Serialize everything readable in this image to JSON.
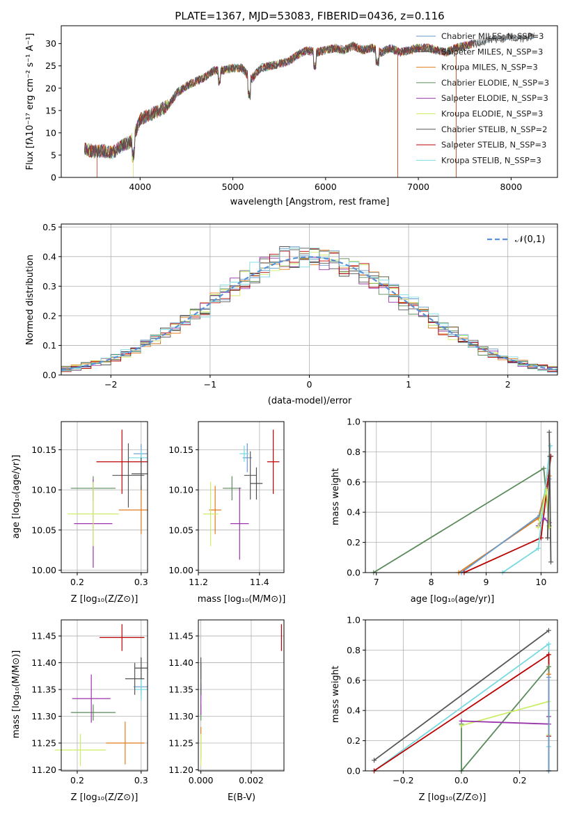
{
  "palette": [
    "#6699cc",
    "#4d4d4d",
    "#e07b1a",
    "#5a8a5a",
    "#9933aa",
    "#ccee66",
    "#555555",
    "#bb0000",
    "#77d9e0"
  ],
  "chart_data": [
    {
      "type": "line",
      "title": "PLATE=1367, MJD=53083, FIBERID=0436, z=0.116",
      "xlabel": "wavelength [Angstrom, rest frame]",
      "ylabel": "Flux [fλ10⁻¹⁷ erg cm⁻² s⁻¹ A⁻¹]",
      "xlim": [
        3150,
        8500
      ],
      "ylim": [
        0,
        34
      ],
      "xticks": [
        "4000",
        "5000",
        "6000",
        "7000",
        "8000"
      ],
      "yticks": [
        "0",
        "5",
        "10",
        "15",
        "20",
        "25",
        "30"
      ],
      "legend_position": "right",
      "series": [
        {
          "name": "Chabrier MILES, N_SSP=3"
        },
        {
          "name": "Salpeter MILES, N_SSP=3"
        },
        {
          "name": "Kroupa MILES, N_SSP=3"
        },
        {
          "name": "Chabrier ELODIE, N_SSP=3"
        },
        {
          "name": "Salpeter ELODIE, N_SSP=3"
        },
        {
          "name": "Kroupa ELODIE, N_SSP=3"
        },
        {
          "name": "Chabrier STELIB, N_SSP=2"
        },
        {
          "name": "Salpeter STELIB, N_SSP=3"
        },
        {
          "name": "Kroupa STELIB, N_SSP=3"
        }
      ],
      "spectrum": {
        "x": [
          3400,
          3500,
          3600,
          3700,
          3800,
          3900,
          3950,
          4000,
          4100,
          4200,
          4300,
          4400,
          4500,
          4600,
          4700,
          4800,
          4900,
          5000,
          5100,
          5200,
          5300,
          5400,
          5500,
          5600,
          5700,
          5800,
          5900,
          6000,
          6100,
          6200,
          6300,
          6400,
          6500,
          6600,
          6700,
          6800,
          6900,
          7000,
          7100,
          7200,
          7300,
          7400,
          7500,
          7600,
          7700,
          7800,
          7900,
          8000,
          8100,
          8200
        ],
        "y": [
          6.5,
          5.8,
          6,
          5.5,
          7,
          8,
          10,
          13,
          14,
          15,
          16,
          19,
          20.5,
          21.5,
          22.5,
          24,
          24,
          24.5,
          24.5,
          22,
          24.5,
          25,
          25.5,
          26,
          27.5,
          28.5,
          28,
          28.5,
          29,
          28.5,
          29.5,
          28.5,
          29,
          28,
          29,
          28,
          28.5,
          29,
          29,
          28.5,
          28,
          29,
          29.5,
          30,
          30.5,
          31,
          31,
          31.5,
          31,
          31.5
        ]
      }
    },
    {
      "type": "line",
      "xlabel": "(data-model)/error",
      "ylabel": "Normed distribution",
      "xlim": [
        -2.5,
        2.5
      ],
      "ylim": [
        0,
        0.51
      ],
      "xticks": [
        "−2",
        "−1",
        "0",
        "1",
        "2"
      ],
      "yticks": [
        "0.0",
        "0.1",
        "0.2",
        "0.3",
        "0.4",
        "0.5"
      ],
      "legend": "𝒩(0,1)",
      "legend_position": "upper right",
      "bin_width": 0.1
    },
    {
      "type": "scatter",
      "xlabel": "Z [log₁₀(Z/Z⊙)]",
      "ylabel": "age  [log₁₀(age/yr)]",
      "xlim": [
        0.175,
        0.31
      ],
      "ylim": [
        9.997,
        10.185
      ],
      "xticks": [
        {
          "v": 0.2,
          "t": "0.2"
        },
        {
          "v": 0.3,
          "t": "0.3"
        }
      ],
      "yticks": [
        {
          "v": 10.0,
          "t": "10.00"
        },
        {
          "v": 10.05,
          "t": "10.05"
        },
        {
          "v": 10.1,
          "t": "10.10"
        },
        {
          "v": 10.15,
          "t": "10.15"
        }
      ],
      "points": [
        {
          "x": 0.3,
          "y": 10.145,
          "xe": 0.012,
          "ye": 0.012,
          "c": 0
        },
        {
          "x": 0.3,
          "y": 10.14,
          "xe": 0.02,
          "ye": 0.01,
          "c": 8
        },
        {
          "x": 0.3,
          "y": 10.075,
          "xe": 0.035,
          "ye": 0.03,
          "c": 2
        },
        {
          "x": 0.225,
          "y": 10.102,
          "xe": 0.035,
          "ye": 0.015,
          "c": 3
        },
        {
          "x": 0.225,
          "y": 10.058,
          "xe": 0.03,
          "ye": 0.055,
          "c": 4
        },
        {
          "x": 0.225,
          "y": 10.07,
          "xe": 0.04,
          "ye": 0.04,
          "c": 5
        },
        {
          "x": 0.28,
          "y": 10.118,
          "xe": 0.025,
          "ye": 0.04,
          "c": 6
        },
        {
          "x": 0.27,
          "y": 10.135,
          "xe": 0.04,
          "ye": 0.04,
          "c": 7
        },
        {
          "x": 0.3,
          "y": 10.12,
          "xe": 0.015,
          "ye": 0.02,
          "c": 1
        }
      ]
    },
    {
      "type": "scatter",
      "xlabel": "mass [log₁₀(M/M⊙)]",
      "xlim": [
        11.2,
        11.48
      ],
      "ylim": [
        9.997,
        10.185
      ],
      "xticks": [
        {
          "v": 11.2,
          "t": "11.2"
        },
        {
          "v": 11.4,
          "t": "11.4"
        }
      ],
      "yticks": [
        {
          "v": 10.0,
          "t": "10.00"
        },
        {
          "v": 10.05,
          "t": "10.05"
        },
        {
          "v": 10.1,
          "t": "10.10"
        },
        {
          "v": 10.15,
          "t": "10.15"
        }
      ],
      "points": [
        {
          "x": 11.36,
          "y": 10.14,
          "xe": 0.015,
          "ye": 0.018,
          "c": 0
        },
        {
          "x": 11.35,
          "y": 10.145,
          "xe": 0.015,
          "ye": 0.01,
          "c": 8
        },
        {
          "x": 11.255,
          "y": 10.075,
          "xe": 0.02,
          "ye": 0.03,
          "c": 2
        },
        {
          "x": 11.31,
          "y": 10.102,
          "xe": 0.03,
          "ye": 0.015,
          "c": 3
        },
        {
          "x": 11.335,
          "y": 10.058,
          "xe": 0.03,
          "ye": 0.045,
          "c": 4
        },
        {
          "x": 11.24,
          "y": 10.07,
          "xe": 0.025,
          "ye": 0.04,
          "c": 5
        },
        {
          "x": 11.37,
          "y": 10.118,
          "xe": 0.02,
          "ye": 0.03,
          "c": 6
        },
        {
          "x": 11.445,
          "y": 10.135,
          "xe": 0.02,
          "ye": 0.04,
          "c": 7
        },
        {
          "x": 11.39,
          "y": 10.108,
          "xe": 0.02,
          "ye": 0.02,
          "c": 1
        }
      ]
    },
    {
      "type": "line",
      "xlabel": "age  [log₁₀(age/yr)]",
      "ylabel": "mass weight",
      "xlim": [
        6.8,
        10.3
      ],
      "ylim": [
        0,
        1
      ],
      "xticks": [
        {
          "v": 7,
          "t": "7"
        },
        {
          "v": 8,
          "t": "8"
        },
        {
          "v": 9,
          "t": "9"
        },
        {
          "v": 10,
          "t": "10"
        }
      ],
      "yticks": [
        {
          "v": 0,
          "t": "0.0"
        },
        {
          "v": 0.2,
          "t": "0.2"
        },
        {
          "v": 0.4,
          "t": "0.4"
        },
        {
          "v": 0.6,
          "t": "0.6"
        },
        {
          "v": 0.8,
          "t": "0.8"
        },
        {
          "v": 1,
          "t": "1.0"
        }
      ],
      "series": [
        {
          "c": 3,
          "x": [
            6.95,
            10.05,
            10.15
          ],
          "y": [
            0,
            0.69,
            0.31
          ]
        },
        {
          "c": 2,
          "x": [
            8.5,
            9.95,
            10.15
          ],
          "y": [
            0,
            0.36,
            0.64
          ]
        },
        {
          "c": 0,
          "x": [
            8.55,
            9.98,
            10.15
          ],
          "y": [
            0,
            0.38,
            0.62
          ]
        },
        {
          "c": 7,
          "x": [
            8.6,
            10.0,
            10.18
          ],
          "y": [
            0,
            0.23,
            0.77
          ]
        },
        {
          "c": 4,
          "x": [
            9.95,
            10.05,
            10.15
          ],
          "y": [
            0.31,
            0.36,
            0.33
          ]
        },
        {
          "c": 8,
          "x": [
            9.3,
            9.95,
            10.17
          ],
          "y": [
            0,
            0.16,
            0.84
          ]
        },
        {
          "c": 6,
          "x": [
            10.15,
            10.18
          ],
          "y": [
            0.93,
            0.07
          ]
        },
        {
          "c": 5,
          "x": [
            9.95,
            10.1,
            10.15
          ],
          "y": [
            0.3,
            0.55,
            0.3
          ]
        },
        {
          "c": 1,
          "x": [
            10.12,
            10.16
          ],
          "y": [
            0.23,
            0.77
          ]
        }
      ]
    },
    {
      "type": "scatter",
      "xlabel": "Z [log₁₀(Z/Z⊙)]",
      "ylabel": "mass [log₁₀(M/M⊙)]",
      "xlim": [
        0.175,
        0.31
      ],
      "ylim": [
        11.198,
        11.48
      ],
      "xticks": [
        {
          "v": 0.2,
          "t": "0.2"
        },
        {
          "v": 0.3,
          "t": "0.3"
        }
      ],
      "yticks": [
        {
          "v": 11.2,
          "t": "11.20"
        },
        {
          "v": 11.25,
          "t": "11.25"
        },
        {
          "v": 11.3,
          "t": "11.30"
        },
        {
          "v": 11.35,
          "t": "11.35"
        },
        {
          "v": 11.4,
          "t": "11.40"
        },
        {
          "v": 11.45,
          "t": "11.45"
        }
      ],
      "points": [
        {
          "x": 0.3,
          "y": 11.355,
          "xe": 0.012,
          "ye": 0.015,
          "c": 0
        },
        {
          "x": 0.3,
          "y": 11.35,
          "xe": 0.01,
          "ye": 0.02,
          "c": 8
        },
        {
          "x": 0.275,
          "y": 11.25,
          "xe": 0.03,
          "ye": 0.04,
          "c": 2
        },
        {
          "x": 0.225,
          "y": 11.307,
          "xe": 0.035,
          "ye": 0.015,
          "c": 3
        },
        {
          "x": 0.222,
          "y": 11.333,
          "xe": 0.03,
          "ye": 0.045,
          "c": 4
        },
        {
          "x": 0.205,
          "y": 11.237,
          "xe": 0.04,
          "ye": 0.03,
          "c": 5
        },
        {
          "x": 0.29,
          "y": 11.37,
          "xe": 0.015,
          "ye": 0.03,
          "c": 6
        },
        {
          "x": 0.27,
          "y": 11.447,
          "xe": 0.035,
          "ye": 0.025,
          "c": 7
        },
        {
          "x": 0.3,
          "y": 11.39,
          "xe": 0.01,
          "ye": 0.02,
          "c": 1
        }
      ]
    },
    {
      "type": "scatter",
      "xlabel": "E(B-V)",
      "xlim": [
        -0.0001,
        0.0033
      ],
      "ylim": [
        11.198,
        11.48
      ],
      "xticks": [
        {
          "v": 0.0,
          "t": "0.000"
        },
        {
          "v": 0.002,
          "t": "0.002"
        }
      ],
      "yticks": [
        {
          "v": 11.2,
          "t": "11.20"
        },
        {
          "v": 11.25,
          "t": "11.25"
        },
        {
          "v": 11.3,
          "t": "11.30"
        },
        {
          "v": 11.35,
          "t": "11.35"
        },
        {
          "v": 11.4,
          "t": "11.40"
        },
        {
          "v": 11.45,
          "t": "11.45"
        }
      ],
      "points": [
        {
          "x": 0.0,
          "y": 11.355,
          "xe": 0.0,
          "ye": 0.015,
          "c": 0
        },
        {
          "x": 0.0,
          "y": 11.35,
          "xe": 0.0,
          "ye": 0.02,
          "c": 8
        },
        {
          "x": 0.0,
          "y": 11.25,
          "xe": 0.0,
          "ye": 0.03,
          "c": 2
        },
        {
          "x": 0.0,
          "y": 11.307,
          "xe": 0.0,
          "ye": 0.015,
          "c": 3
        },
        {
          "x": 0.0,
          "y": 11.333,
          "xe": 0.0,
          "ye": 0.03,
          "c": 4
        },
        {
          "x": 0.0,
          "y": 11.237,
          "xe": 0.0,
          "ye": 0.03,
          "c": 5
        },
        {
          "x": 0.0,
          "y": 11.37,
          "xe": 0.0,
          "ye": 0.03,
          "c": 6
        },
        {
          "x": 0.0032,
          "y": 11.447,
          "xe": 0.0,
          "ye": 0.025,
          "c": 7
        },
        {
          "x": 0.0,
          "y": 11.39,
          "xe": 0.0,
          "ye": 0.02,
          "c": 1
        }
      ]
    },
    {
      "type": "line",
      "xlabel": "Z [log₁₀(Z/Z⊙)]",
      "ylabel": "mass weight",
      "xlim": [
        -0.33,
        0.33
      ],
      "ylim": [
        0,
        1
      ],
      "xticks": [
        {
          "v": -0.2,
          "t": "−0.2"
        },
        {
          "v": 0,
          "t": "0.0"
        },
        {
          "v": 0.2,
          "t": "0.2"
        }
      ],
      "yticks": [
        {
          "v": 0,
          "t": "0.0"
        },
        {
          "v": 0.2,
          "t": "0.2"
        },
        {
          "v": 0.4,
          "t": "0.4"
        },
        {
          "v": 0.6,
          "t": "0.6"
        },
        {
          "v": 0.8,
          "t": "0.8"
        },
        {
          "v": 1,
          "t": "1.0"
        }
      ],
      "series": [
        {
          "c": 6,
          "x": [
            -0.3,
            0.3
          ],
          "y": [
            0.07,
            0.93
          ]
        },
        {
          "c": 8,
          "x": [
            -0.3,
            0.3,
            0.3
          ],
          "y": [
            0.0,
            0.84,
            0.16
          ]
        },
        {
          "c": 7,
          "x": [
            -0.3,
            0.3,
            0.3
          ],
          "y": [
            0.0,
            0.77,
            0.23
          ]
        },
        {
          "c": 3,
          "x": [
            0.0,
            0.0,
            0.3,
            0.3
          ],
          "y": [
            0.31,
            0.0,
            0.69,
            0.0
          ]
        },
        {
          "c": 5,
          "x": [
            0.0,
            0.3,
            0.3
          ],
          "y": [
            0.3,
            0.46,
            0.24
          ]
        },
        {
          "c": 4,
          "x": [
            0.0,
            0.3,
            0.3
          ],
          "y": [
            0.33,
            0.31,
            0.36
          ]
        },
        {
          "c": 2,
          "x": [
            0.3,
            0.3
          ],
          "y": [
            0.0,
            0.64
          ]
        },
        {
          "c": 0,
          "x": [
            0.3,
            0.3
          ],
          "y": [
            0.0,
            0.62
          ]
        }
      ]
    }
  ]
}
